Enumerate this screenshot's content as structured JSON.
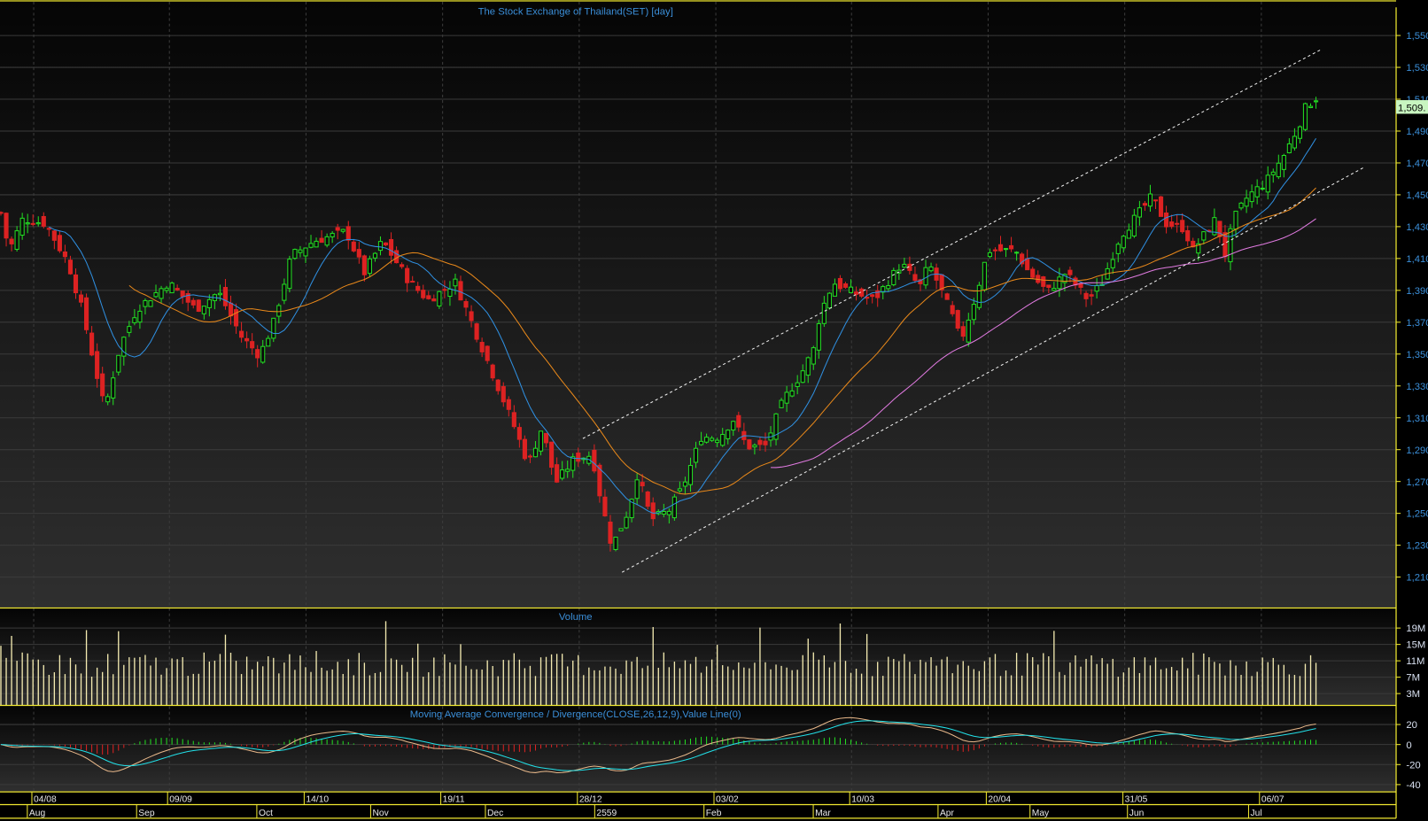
{
  "main": {
    "title": "The Stock Exchange of Thailand(SET) [day]",
    "price_tag": "1,509.",
    "y_ticks": [
      "1,550",
      "1,530",
      "1,510",
      "1,490",
      "1,470",
      "1,450",
      "1,430",
      "1,410",
      "1,390",
      "1,370",
      "1,350",
      "1,330",
      "1,310",
      "1,290",
      "1,270",
      "1,250",
      "1,230",
      "1,210"
    ]
  },
  "volume": {
    "title": "Volume",
    "y_ticks": [
      "19M",
      "15M",
      "11M",
      "7M",
      "3M"
    ]
  },
  "macd": {
    "title": "Moving Average Convergence / Divergence(CLOSE,26,12,9),Value Line(0)",
    "y_ticks": [
      "20",
      "0",
      "-20",
      "-40"
    ]
  },
  "x_axis": {
    "dates": [
      "04/08",
      "09/09",
      "14/10",
      "19/11",
      "28/12",
      "03/02",
      "10/03",
      "20/04",
      "31/05",
      "06/07"
    ],
    "months": [
      "Aug",
      "Sep",
      "Oct",
      "Nov",
      "Dec",
      "2559",
      "Feb",
      "Mar",
      "Apr",
      "May",
      "Jun",
      "Jul"
    ]
  },
  "colors": {
    "up": "#22dd22",
    "down": "#dd2222",
    "ma_short": "#2f8fe0",
    "ma_mid": "#e8881a",
    "ma_long": "#e07ae0",
    "volume": "#f3eab0",
    "macd_line": "#e8b88a",
    "signal_line": "#22e0e8",
    "axis": "#f0e830",
    "label": "#3b8fd9"
  },
  "chart_data": {
    "type": "candlestick",
    "title": "The Stock Exchange of Thailand(SET) [day]",
    "ylim": [
      1200,
      1560
    ],
    "last_close": 1509,
    "close_path": [
      [
        0,
        1441
      ],
      [
        10,
        1415
      ],
      [
        25,
        1435
      ],
      [
        50,
        1432
      ],
      [
        75,
        1407
      ],
      [
        90,
        1378
      ],
      [
        115,
        1315
      ],
      [
        132,
        1355
      ],
      [
        150,
        1378
      ],
      [
        185,
        1395
      ],
      [
        215,
        1378
      ],
      [
        240,
        1389
      ],
      [
        265,
        1361
      ],
      [
        285,
        1349
      ],
      [
        300,
        1369
      ],
      [
        320,
        1412
      ],
      [
        345,
        1421
      ],
      [
        380,
        1427
      ],
      [
        400,
        1401
      ],
      [
        420,
        1421
      ],
      [
        450,
        1395
      ],
      [
        470,
        1384
      ],
      [
        500,
        1395
      ],
      [
        520,
        1367
      ],
      [
        545,
        1332
      ],
      [
        565,
        1304
      ],
      [
        580,
        1281
      ],
      [
        595,
        1304
      ],
      [
        610,
        1269
      ],
      [
        630,
        1284
      ],
      [
        650,
        1287
      ],
      [
        660,
        1258
      ],
      [
        672,
        1229
      ],
      [
        690,
        1252
      ],
      [
        700,
        1275
      ],
      [
        715,
        1246
      ],
      [
        735,
        1252
      ],
      [
        750,
        1267
      ],
      [
        770,
        1298
      ],
      [
        790,
        1298
      ],
      [
        805,
        1309
      ],
      [
        820,
        1292
      ],
      [
        840,
        1292
      ],
      [
        860,
        1321
      ],
      [
        880,
        1338
      ],
      [
        895,
        1355
      ],
      [
        900,
        1375
      ],
      [
        915,
        1395
      ],
      [
        935,
        1389
      ],
      [
        960,
        1384
      ],
      [
        990,
        1407
      ],
      [
        1010,
        1392
      ],
      [
        1020,
        1407
      ],
      [
        1045,
        1375
      ],
      [
        1055,
        1358
      ],
      [
        1070,
        1384
      ],
      [
        1085,
        1415
      ],
      [
        1100,
        1415
      ],
      [
        1115,
        1415
      ],
      [
        1130,
        1401
      ],
      [
        1150,
        1389
      ],
      [
        1170,
        1401
      ],
      [
        1195,
        1384
      ],
      [
        1210,
        1395
      ],
      [
        1230,
        1424
      ],
      [
        1250,
        1438
      ],
      [
        1265,
        1449
      ],
      [
        1280,
        1432
      ],
      [
        1300,
        1429
      ],
      [
        1310,
        1415
      ],
      [
        1335,
        1435
      ],
      [
        1345,
        1412
      ],
      [
        1355,
        1435
      ],
      [
        1370,
        1449
      ],
      [
        1390,
        1458
      ],
      [
        1410,
        1475
      ],
      [
        1425,
        1492
      ],
      [
        1435,
        1507
      ],
      [
        1445,
        1509
      ]
    ],
    "trend_channel": {
      "upper": [
        [
          1312,
          1297
        ],
        [
          2604,
          1541
        ]
      ],
      "lower": [
        [
          1315,
          1213
        ],
        [
          2645,
          1467
        ]
      ]
    }
  }
}
